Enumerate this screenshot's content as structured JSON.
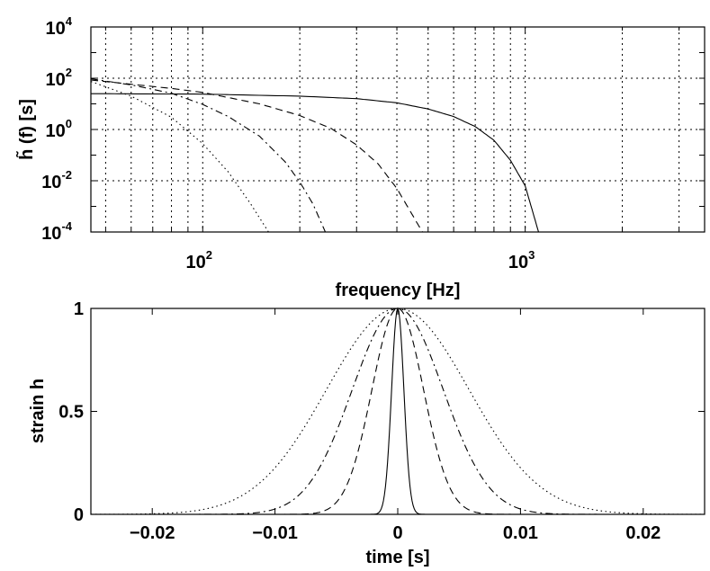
{
  "chart_data": [
    {
      "type": "line",
      "ylabel": "h̃ (f) [s]",
      "xlabel": "frequency [Hz]",
      "xscale": "log",
      "yscale": "log",
      "xlim": [
        45,
        3600
      ],
      "ylim": [
        0.0001,
        10000
      ],
      "grid": true,
      "x_tick_labels": [
        "10^2",
        "10^3"
      ],
      "y_tick_labels": [
        "10^-4",
        "10^-2",
        "10^0",
        "10^2",
        "10^4"
      ],
      "series": [
        {
          "style": "solid",
          "x": [
            45,
            100,
            200,
            300,
            400,
            500,
            600,
            700,
            800,
            900,
            1000,
            1100
          ],
          "y": [
            25,
            24,
            20,
            16,
            11,
            6.3,
            3.2,
            1.3,
            0.38,
            0.063,
            0.0063,
            0.0001
          ]
        },
        {
          "style": "dashed",
          "x": [
            45,
            80,
            100,
            150,
            200,
            250,
            300,
            350,
            400,
            450,
            480
          ],
          "y": [
            85,
            40,
            28,
            10,
            3.5,
            1.1,
            0.25,
            0.045,
            0.005,
            0.0004,
            0.0001
          ]
        },
        {
          "style": "dashdot",
          "x": [
            45,
            60,
            80,
            100,
            120,
            150,
            180,
            200,
            220,
            240
          ],
          "y": [
            95,
            55,
            26,
            9.5,
            3.2,
            0.55,
            0.055,
            0.009,
            0.0012,
            0.0001
          ]
        },
        {
          "style": "dotted",
          "x": [
            45,
            60,
            80,
            100,
            120,
            140,
            160
          ],
          "y": [
            75,
            20,
            3,
            0.28,
            0.022,
            0.0014,
            0.0001
          ]
        }
      ]
    },
    {
      "type": "line",
      "ylabel": "strain h",
      "xlabel": "time [s]",
      "xlim": [
        -0.025,
        0.025
      ],
      "ylim": [
        0,
        1
      ],
      "x_tick_labels": [
        "−0.02",
        "−0.01",
        "0",
        "0.01",
        "0.02"
      ],
      "y_tick_labels": [
        "0",
        "0.5",
        "1"
      ],
      "series": [
        {
          "style": "solid",
          "shape": "gaussian",
          "center": 0,
          "sigma": 0.0005
        },
        {
          "style": "dashed",
          "shape": "gaussian",
          "center": 0,
          "sigma": 0.0021
        },
        {
          "style": "dashdot",
          "shape": "gaussian",
          "center": 0,
          "sigma": 0.0037
        },
        {
          "style": "dotted",
          "shape": "gaussian",
          "center": 0,
          "sigma": 0.0058
        }
      ]
    }
  ]
}
